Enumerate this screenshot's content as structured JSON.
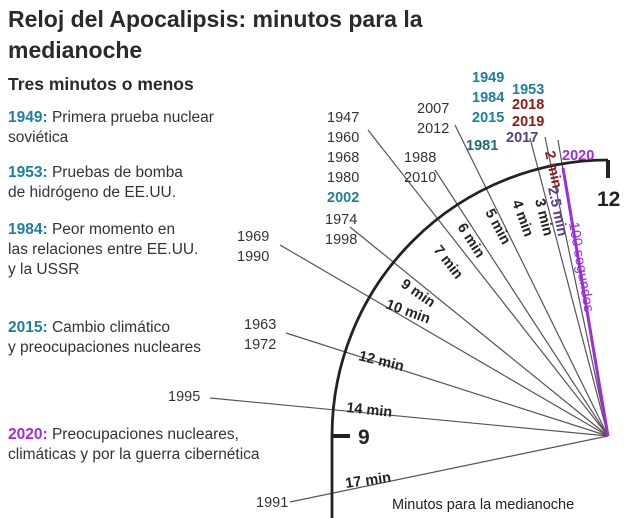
{
  "title": "Reloj del Apocalipsis: minutos para la medianoche",
  "subtitle": "Tres minutos o menos",
  "events": [
    {
      "year": "1949",
      "sep": ": ",
      "desc": "Primera prueba nuclear\nsoviética",
      "color": "#1e7f9a"
    },
    {
      "year": "1953",
      "sep": ": ",
      "desc": "Pruebas de bomba\nde hidrógeno de EE.UU.",
      "color": "#1e7f9a"
    },
    {
      "year": "1984",
      "sep": ": ",
      "desc": "Peor momento en\nlas relaciones entre EE.UU.\ny la USSR",
      "color": "#1e7f9a"
    },
    {
      "year": "2015",
      "sep": ": ",
      "desc": "Cambio climático\ny preocupaciones nucleares",
      "color": "#1e7f9a"
    },
    {
      "year": "2020",
      "sep": ": ",
      "desc": "Preocupaciones nucleares,\nclimáticas y por la guerra cibernética",
      "color": "#9b30d9"
    }
  ],
  "clock": {
    "hour_12": "12",
    "hour_9": "9",
    "axis_caption": "Minutos para la medianoche",
    "hand_label": "100 segundos",
    "hand_color": "#9b30d9",
    "ring_labels": [
      {
        "text": "2 min",
        "minutes": 2,
        "color": "#8b1a1a"
      },
      {
        "text": "2.5 min",
        "minutes": 2.5,
        "color": "#5b3b8c"
      },
      {
        "text": "3 min",
        "minutes": 3,
        "color": "#222222"
      },
      {
        "text": "4 min",
        "minutes": 4,
        "color": "#222222"
      },
      {
        "text": "5 min",
        "minutes": 5,
        "color": "#222222"
      },
      {
        "text": "6 min",
        "minutes": 6,
        "color": "#222222"
      },
      {
        "text": "7 min",
        "minutes": 7,
        "color": "#222222"
      },
      {
        "text": "9 min",
        "minutes": 9,
        "color": "#222222"
      },
      {
        "text": "10 min",
        "minutes": 10,
        "color": "#222222"
      },
      {
        "text": "12 min",
        "minutes": 12,
        "color": "#222222"
      },
      {
        "text": "14 min",
        "minutes": 14,
        "color": "#222222"
      },
      {
        "text": "17 min",
        "minutes": 17,
        "color": "#222222"
      }
    ],
    "year_groups": [
      {
        "minutes": 2,
        "years": [
          {
            "text": "2018",
            "color": "#8b1a1a"
          },
          {
            "text": "2019",
            "color": "#8b1a1a"
          }
        ]
      },
      {
        "minutes": 2.5,
        "years": [
          {
            "text": "2017",
            "color": "#5b3b8c"
          }
        ]
      },
      {
        "minutes": 3,
        "years": [
          {
            "text": "1981",
            "color": "#1e6b78"
          }
        ]
      },
      {
        "minutes": 3,
        "years": [
          {
            "text": "1949",
            "color": "#1e7f9a"
          },
          {
            "text": "1984",
            "color": "#1e7f9a"
          },
          {
            "text": "2015",
            "color": "#1e7f9a"
          }
        ]
      },
      {
        "minutes": 3,
        "years": [
          {
            "text": "1953",
            "color": "#1e7f9a"
          }
        ]
      },
      {
        "minutes": 5,
        "years": [
          {
            "text": "2007",
            "color": "#333333"
          },
          {
            "text": "2012",
            "color": "#333333"
          }
        ]
      },
      {
        "minutes": 6,
        "years": [
          {
            "text": "1988",
            "color": "#333333"
          },
          {
            "text": "2010",
            "color": "#333333"
          }
        ]
      },
      {
        "minutes": 7,
        "years": [
          {
            "text": "1947",
            "color": "#333333"
          },
          {
            "text": "1960",
            "color": "#333333"
          },
          {
            "text": "1968",
            "color": "#333333"
          },
          {
            "text": "1980",
            "color": "#333333"
          },
          {
            "text": "2002",
            "color": "#1e7f9a"
          }
        ]
      },
      {
        "minutes": 9,
        "years": [
          {
            "text": "1974",
            "color": "#333333"
          },
          {
            "text": "1998",
            "color": "#333333"
          }
        ]
      },
      {
        "minutes": 10,
        "years": [
          {
            "text": "1969",
            "color": "#333333"
          },
          {
            "text": "1990",
            "color": "#333333"
          }
        ]
      },
      {
        "minutes": 12,
        "years": [
          {
            "text": "1963",
            "color": "#333333"
          },
          {
            "text": "1972",
            "color": "#333333"
          }
        ]
      },
      {
        "minutes": 14,
        "years": [
          {
            "text": "1995",
            "color": "#333333"
          }
        ]
      },
      {
        "minutes": 17,
        "years": [
          {
            "text": "1991",
            "color": "#333333"
          }
        ]
      },
      {
        "minutes": 1.67,
        "years": [
          {
            "text": "2020",
            "color": "#9b30d9"
          }
        ]
      }
    ]
  }
}
